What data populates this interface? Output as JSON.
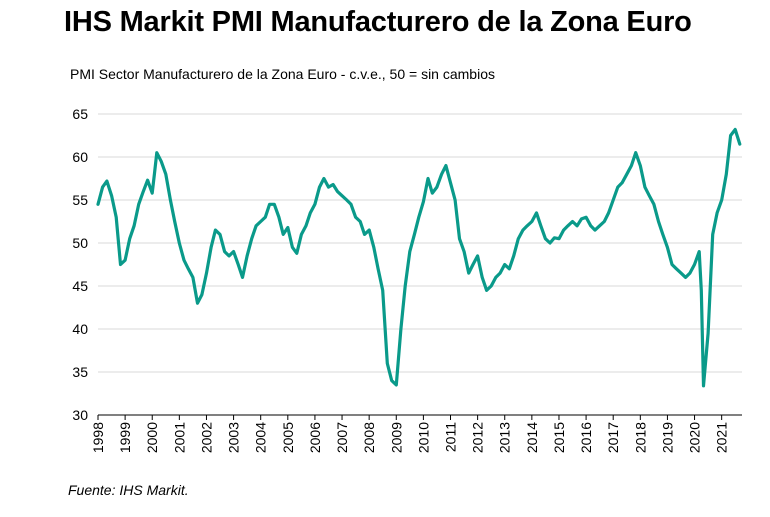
{
  "title": "IHS Markit PMI Manufacturero de la Zona Euro",
  "subtitle": "PMI Sector Manufacturero de la Zona Euro - c.v.e., 50 =  sin cambios",
  "source": "Fuente: IHS Markit.",
  "chart_data": {
    "type": "line",
    "title": "IHS Markit PMI Manufacturero de la Zona Euro",
    "subtitle": "PMI Sector Manufacturero de la Zona Euro - c.v.e., 50 =  sin cambios",
    "xlabel": "",
    "ylabel": "",
    "ylim": [
      30,
      65
    ],
    "yticks": [
      30,
      35,
      40,
      45,
      50,
      55,
      60,
      65
    ],
    "xlim": [
      1998.0,
      2021.75
    ],
    "xticks": [
      "1998",
      "1999",
      "2000",
      "2001",
      "2002",
      "2003",
      "2004",
      "2005",
      "2006",
      "2007",
      "2008",
      "2009",
      "2010",
      "2011",
      "2012",
      "2013",
      "2014",
      "2015",
      "2016",
      "2017",
      "2018",
      "2019",
      "2020",
      "2021"
    ],
    "grid": "horizontal",
    "legend": "none",
    "line_color": "#0a9a8a",
    "series": [
      {
        "x": [
          1998.0,
          1998.17,
          1998.33,
          1998.5,
          1998.67,
          1998.83,
          1999.0,
          1999.17,
          1999.33,
          1999.5,
          1999.67,
          1999.83,
          2000.0,
          2000.08,
          2000.17,
          2000.33,
          2000.5,
          2000.67,
          2000.83,
          2001.0,
          2001.17,
          2001.33,
          2001.5,
          2001.67,
          2001.83,
          2002.0,
          2002.17,
          2002.33,
          2002.5,
          2002.67,
          2002.83,
          2003.0,
          2003.17,
          2003.33,
          2003.5,
          2003.67,
          2003.83,
          2004.0,
          2004.17,
          2004.33,
          2004.5,
          2004.67,
          2004.83,
          2005.0,
          2005.17,
          2005.33,
          2005.5,
          2005.67,
          2005.83,
          2006.0,
          2006.17,
          2006.33,
          2006.5,
          2006.67,
          2006.83,
          2007.0,
          2007.17,
          2007.33,
          2007.5,
          2007.67,
          2007.83,
          2008.0,
          2008.17,
          2008.33,
          2008.5,
          2008.67,
          2008.83,
          2009.0,
          2009.17,
          2009.33,
          2009.5,
          2009.67,
          2009.83,
          2010.0,
          2010.17,
          2010.33,
          2010.5,
          2010.67,
          2010.83,
          2011.0,
          2011.17,
          2011.33,
          2011.5,
          2011.67,
          2011.83,
          2012.0,
          2012.17,
          2012.33,
          2012.5,
          2012.67,
          2012.83,
          2013.0,
          2013.17,
          2013.33,
          2013.5,
          2013.67,
          2013.83,
          2014.0,
          2014.17,
          2014.33,
          2014.5,
          2014.67,
          2014.83,
          2015.0,
          2015.17,
          2015.33,
          2015.5,
          2015.67,
          2015.83,
          2016.0,
          2016.17,
          2016.33,
          2016.5,
          2016.67,
          2016.83,
          2017.0,
          2017.17,
          2017.33,
          2017.5,
          2017.67,
          2017.83,
          2018.0,
          2018.17,
          2018.33,
          2018.5,
          2018.67,
          2018.83,
          2019.0,
          2019.17,
          2019.33,
          2019.5,
          2019.67,
          2019.83,
          2020.0,
          2020.17,
          2020.25,
          2020.33,
          2020.5,
          2020.67,
          2020.83,
          2021.0,
          2021.17,
          2021.33,
          2021.5,
          2021.67
        ],
        "y": [
          54.5,
          56.5,
          57.2,
          55.5,
          53.0,
          47.5,
          48.0,
          50.5,
          52.0,
          54.5,
          56.0,
          57.3,
          55.8,
          58.0,
          60.5,
          59.5,
          58.0,
          55.0,
          52.5,
          50.0,
          48.0,
          47.0,
          46.0,
          43.0,
          44.0,
          46.5,
          49.5,
          51.5,
          51.0,
          49.0,
          48.5,
          49.0,
          47.5,
          46.0,
          48.5,
          50.5,
          52.0,
          52.5,
          53.0,
          54.5,
          54.5,
          53.0,
          51.0,
          51.8,
          49.5,
          48.8,
          51.0,
          52.0,
          53.5,
          54.5,
          56.5,
          57.5,
          56.5,
          56.8,
          56.0,
          55.5,
          55.0,
          54.5,
          53.0,
          52.5,
          51.0,
          51.5,
          49.5,
          47.0,
          44.5,
          36.0,
          34.0,
          33.5,
          40.0,
          45.0,
          49.0,
          51.0,
          53.0,
          54.8,
          57.5,
          55.8,
          56.5,
          58.0,
          59.0,
          57.0,
          55.0,
          50.5,
          49.0,
          46.5,
          47.5,
          48.5,
          46.0,
          44.5,
          45.0,
          46.0,
          46.5,
          47.5,
          47.0,
          48.5,
          50.5,
          51.5,
          52.0,
          52.5,
          53.5,
          52.0,
          50.5,
          50.0,
          50.6,
          50.5,
          51.5,
          52.0,
          52.5,
          52.0,
          52.8,
          53.0,
          52.0,
          51.5,
          52.0,
          52.5,
          53.5,
          55.0,
          56.5,
          57.0,
          58.0,
          59.0,
          60.5,
          59.0,
          56.5,
          55.5,
          54.5,
          52.5,
          51.0,
          49.5,
          47.5,
          47.0,
          46.5,
          46.0,
          46.5,
          47.5,
          49.0,
          44.5,
          33.4,
          39.5,
          51.0,
          53.5,
          55.0,
          58.0,
          62.5,
          63.2,
          61.5
        ]
      }
    ]
  }
}
